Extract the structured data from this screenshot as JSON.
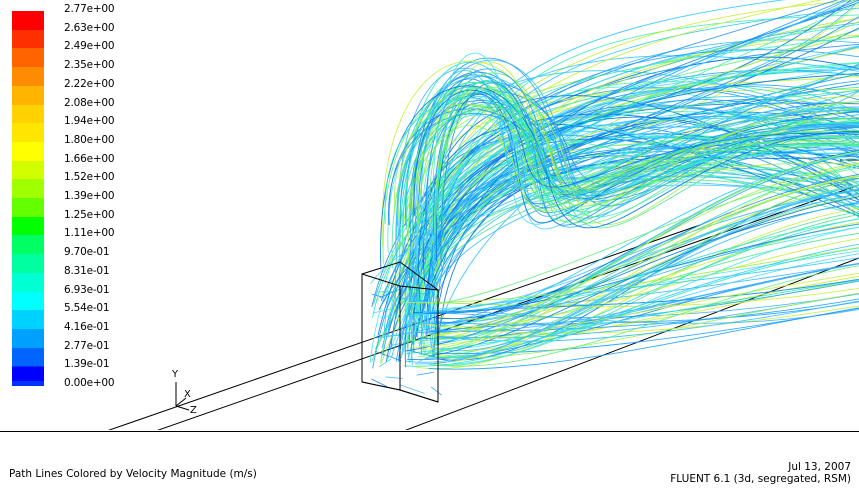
{
  "legend": {
    "labels": [
      "2.77e+00",
      "2.63e+00",
      "2.49e+00",
      "2.35e+00",
      "2.22e+00",
      "2.08e+00",
      "1.94e+00",
      "1.80e+00",
      "1.66e+00",
      "1.52e+00",
      "1.39e+00",
      "1.25e+00",
      "1.11e+00",
      "9.70e-01",
      "8.31e-01",
      "6.93e-01",
      "5.54e-01",
      "4.16e-01",
      "2.77e-01",
      "1.39e-01",
      "0.00e+00"
    ],
    "colors": [
      "#ff0000",
      "#ff3000",
      "#ff6400",
      "#ff8c00",
      "#ffb400",
      "#ffd200",
      "#ffe600",
      "#ffff00",
      "#d2ff00",
      "#a0ff00",
      "#64ff00",
      "#00ff00",
      "#00ff64",
      "#00ffa0",
      "#00ffd2",
      "#00ffff",
      "#00d2ff",
      "#00a0ff",
      "#0064ff",
      "#0032ff",
      "#0000ff"
    ]
  },
  "axes": {
    "y": "Y",
    "x": "X",
    "z": "Z"
  },
  "footer": {
    "title": "Path Lines Colored by Velocity Magnitude (m/s)",
    "date": "Jul 13, 2007",
    "solver": "FLUENT 6.1 (3d, segregated, RSM)"
  }
}
